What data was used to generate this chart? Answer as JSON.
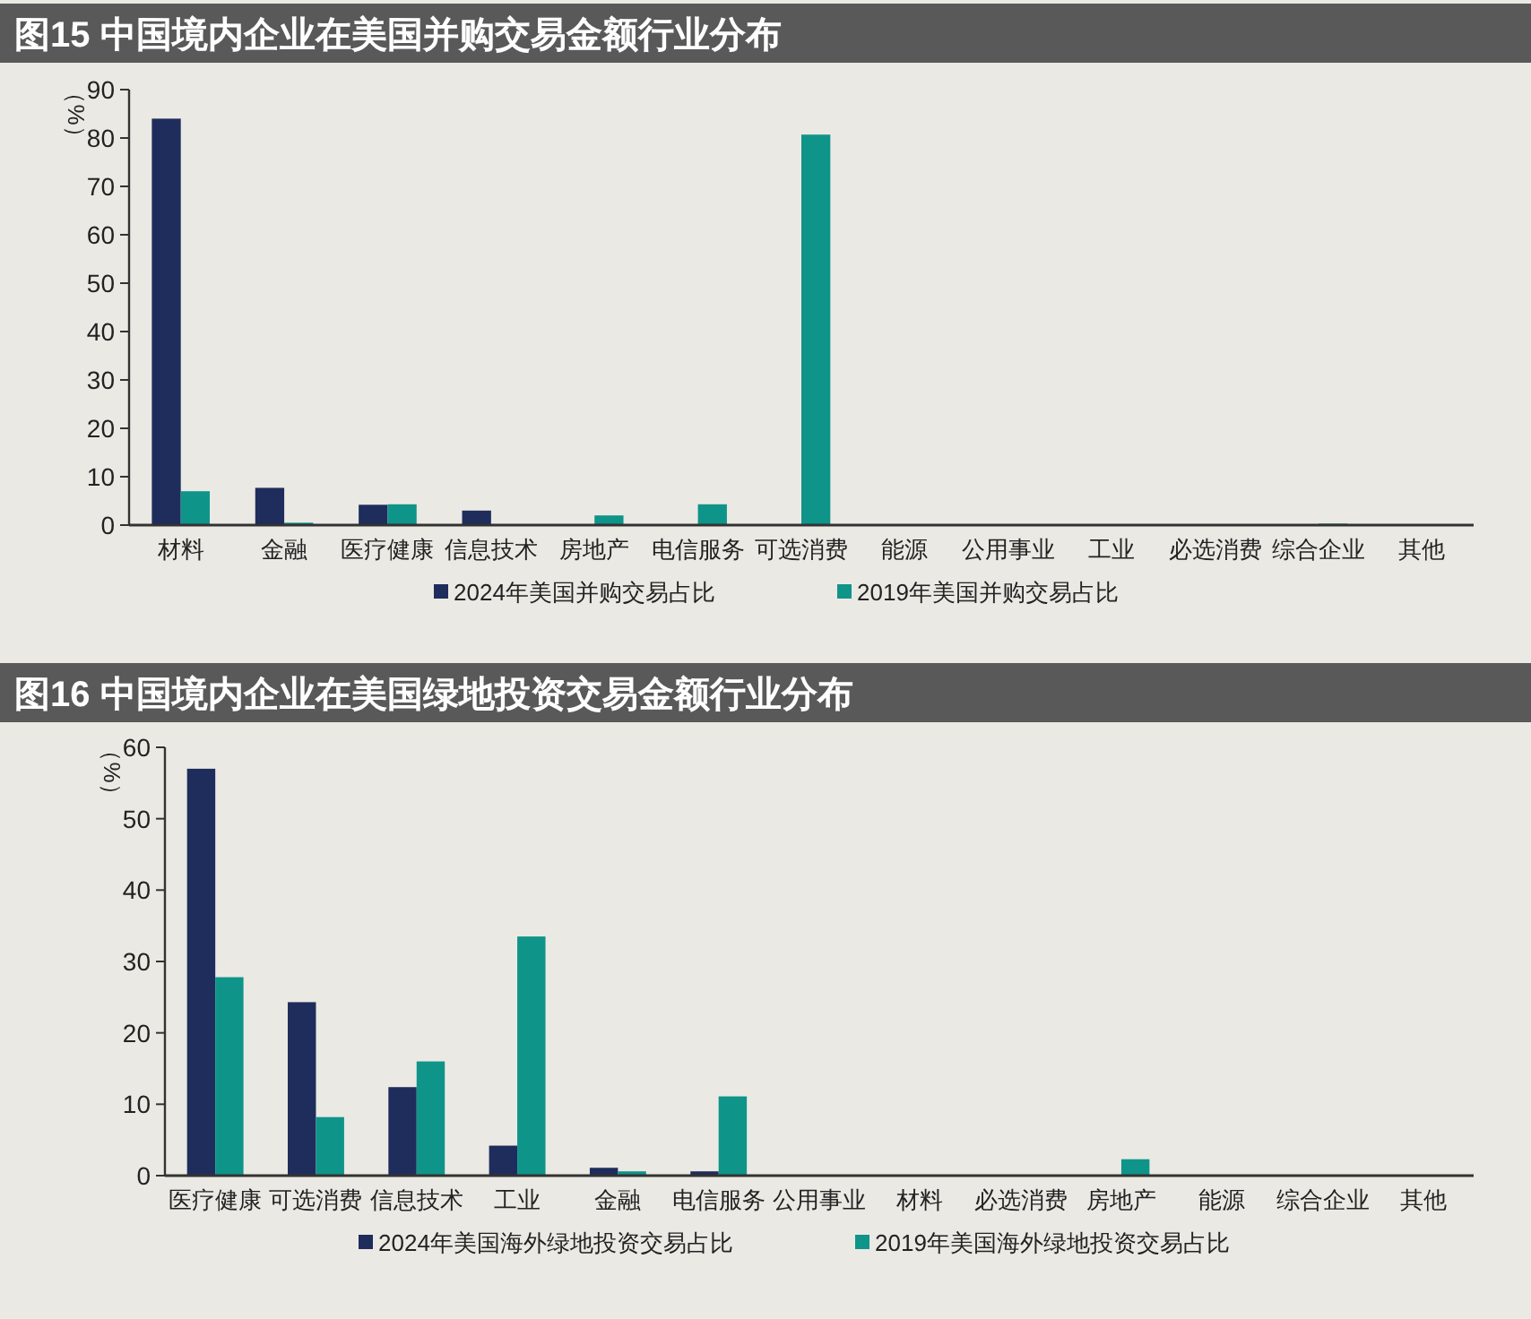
{
  "chart_data": [
    {
      "type": "bar",
      "title": "图15  中国境内企业在美国并购交易金额行业分布",
      "ylabel": "（%）",
      "categories": [
        "材料",
        "金融",
        "医疗健康",
        "信息技术",
        "房地产",
        "电信服务",
        "可选消费",
        "能源",
        "公用事业",
        "工业",
        "必选消费",
        "综合企业",
        "其他"
      ],
      "series": [
        {
          "name": "2024年美国并购交易占比",
          "color": "#1f2d5c",
          "values": [
            84,
            7.7,
            4.2,
            3,
            0,
            0,
            0,
            0,
            0,
            0,
            0,
            0,
            0
          ]
        },
        {
          "name": "2019年美国并购交易占比",
          "color": "#0f948a",
          "values": [
            7,
            0.5,
            4.3,
            0,
            2,
            4.3,
            80.7,
            0,
            0,
            0,
            0,
            0.3,
            0
          ]
        }
      ],
      "ylim": [
        0,
        90
      ],
      "yticks": [
        0,
        10,
        20,
        30,
        40,
        50,
        60,
        70,
        80,
        90
      ],
      "grid": false,
      "legend": "bottom"
    },
    {
      "type": "bar",
      "title": "图16  中国境内企业在美国绿地投资交易金额行业分布",
      "ylabel": "（%）",
      "categories": [
        "医疗健康",
        "可选消费",
        "信息技术",
        "工业",
        "金融",
        "电信服务",
        "公用事业",
        "材料",
        "必选消费",
        "房地产",
        "能源",
        "综合企业",
        "其他"
      ],
      "series": [
        {
          "name": "2024年美国海外绿地投资交易占比",
          "color": "#1f2d5c",
          "values": [
            57,
            24.3,
            12.4,
            4.2,
            1.1,
            0.6,
            0,
            0,
            0,
            0,
            0,
            0,
            0
          ]
        },
        {
          "name": "2019年美国海外绿地投资交易占比",
          "color": "#0f948a",
          "values": [
            27.8,
            8.2,
            16,
            33.5,
            0.6,
            11.1,
            0,
            0,
            0,
            2.3,
            0,
            0,
            0
          ]
        }
      ],
      "ylim": [
        0,
        60
      ],
      "yticks": [
        0,
        10,
        20,
        30,
        40,
        50,
        60
      ],
      "grid": false,
      "legend": "bottom"
    }
  ]
}
